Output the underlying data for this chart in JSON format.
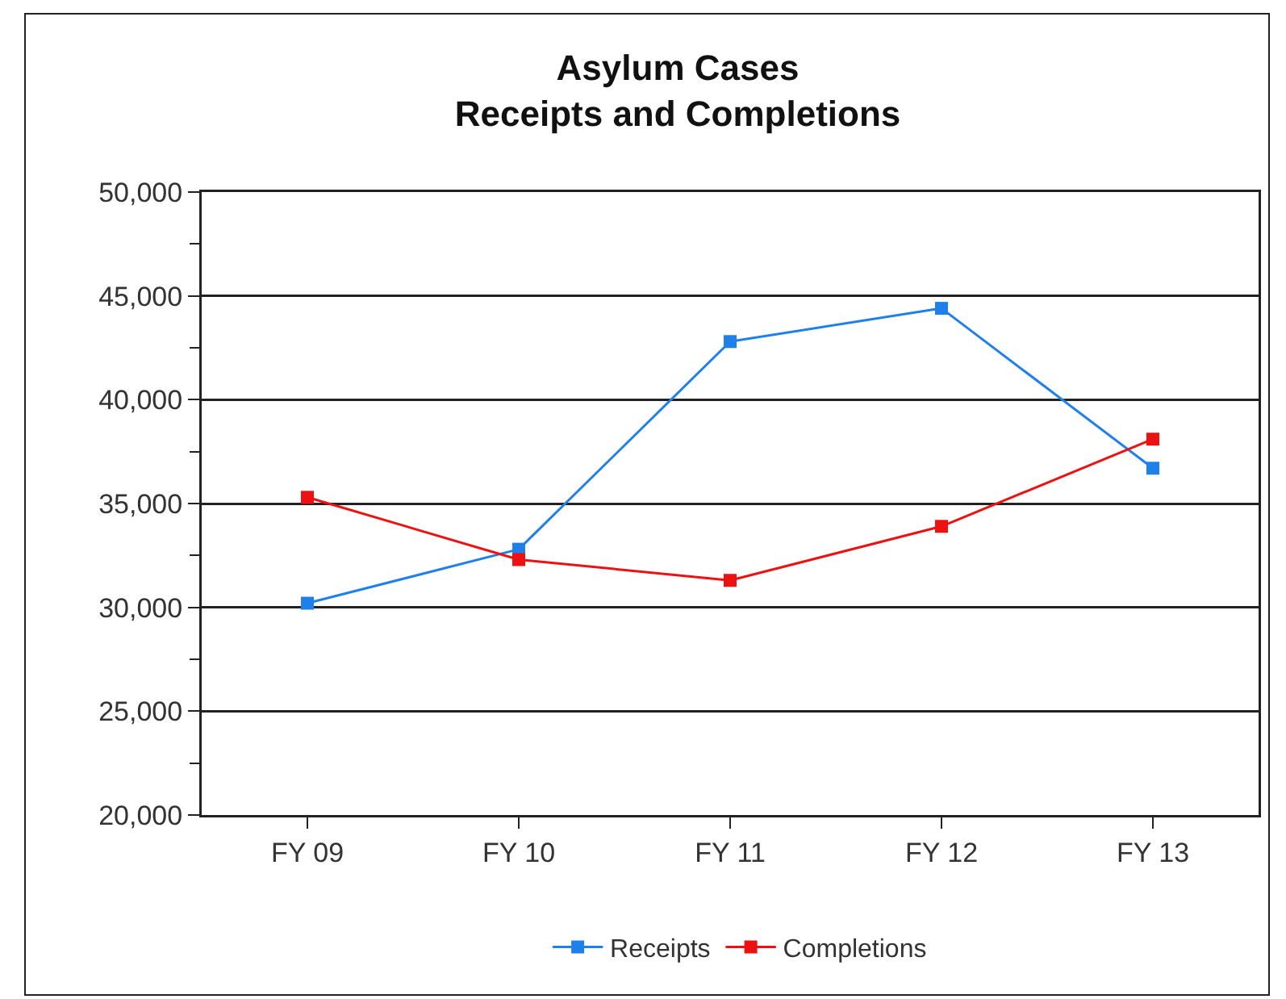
{
  "chart_data": {
    "type": "line",
    "title": "Asylum Cases\nReceipts and Completions",
    "categories": [
      "FY 09",
      "FY 10",
      "FY 11",
      "FY 12",
      "FY 13"
    ],
    "series": [
      {
        "name": "Receipts",
        "color": "#1f80ec",
        "values": [
          30200,
          32800,
          42800,
          44400,
          36700
        ]
      },
      {
        "name": "Completions",
        "color": "#ee1111",
        "values": [
          35300,
          32300,
          31300,
          33900,
          38100
        ]
      }
    ],
    "ylim": [
      20000,
      50000
    ],
    "yticks": [
      {
        "value": 20000,
        "label": "20,000"
      },
      {
        "value": 22500,
        "label": null
      },
      {
        "value": 25000,
        "label": "25,000"
      },
      {
        "value": 27500,
        "label": null
      },
      {
        "value": 30000,
        "label": "30,000"
      },
      {
        "value": 32500,
        "label": null
      },
      {
        "value": 35000,
        "label": "35,000"
      },
      {
        "value": 37500,
        "label": null
      },
      {
        "value": 40000,
        "label": "40,000"
      },
      {
        "value": 42500,
        "label": null
      },
      {
        "value": 45000,
        "label": "45,000"
      },
      {
        "value": 47500,
        "label": null
      },
      {
        "value": 50000,
        "label": "50,000"
      }
    ],
    "grid": "y",
    "legend": "bottom",
    "marker": "square",
    "line_style": "solid"
  }
}
